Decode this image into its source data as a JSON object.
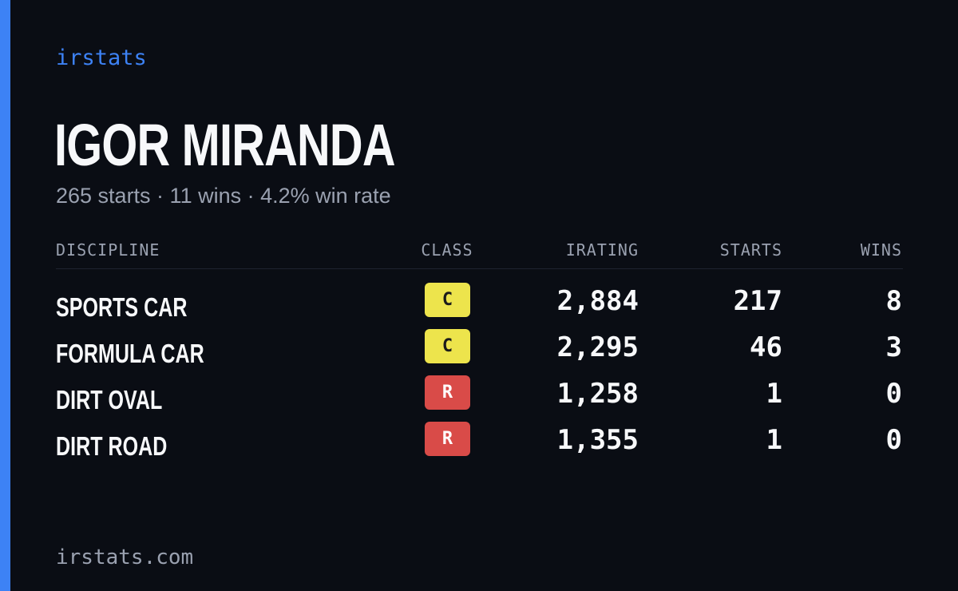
{
  "brand": "irstats",
  "driver": {
    "name": "IGOR MIRANDA",
    "summary": "265 starts · 11 wins · 4.2% win rate"
  },
  "table": {
    "headers": {
      "discipline": "DISCIPLINE",
      "class": "CLASS",
      "irating": "IRATING",
      "starts": "STARTS",
      "wins": "WINS"
    },
    "rows": [
      {
        "discipline": "SPORTS CAR",
        "class": "C",
        "irating": "2,884",
        "starts": "217",
        "wins": "8"
      },
      {
        "discipline": "FORMULA CAR",
        "class": "C",
        "irating": "2,295",
        "starts": "46",
        "wins": "3"
      },
      {
        "discipline": "DIRT OVAL",
        "class": "R",
        "irating": "1,258",
        "starts": "1",
        "wins": "0"
      },
      {
        "discipline": "DIRT ROAD",
        "class": "R",
        "irating": "1,355",
        "starts": "1",
        "wins": "0"
      }
    ]
  },
  "class_colors": {
    "C": {
      "background": "#ede44c",
      "text": "#1b1b1b"
    },
    "R": {
      "background": "#d94b48",
      "text": "#ffffff"
    }
  },
  "colors": {
    "accent": "#3d82f5",
    "background": "#0a0d14",
    "text_primary": "#f7f8fa",
    "text_muted": "#9aa1b0"
  },
  "footer": {
    "domain": "irstats.com"
  }
}
